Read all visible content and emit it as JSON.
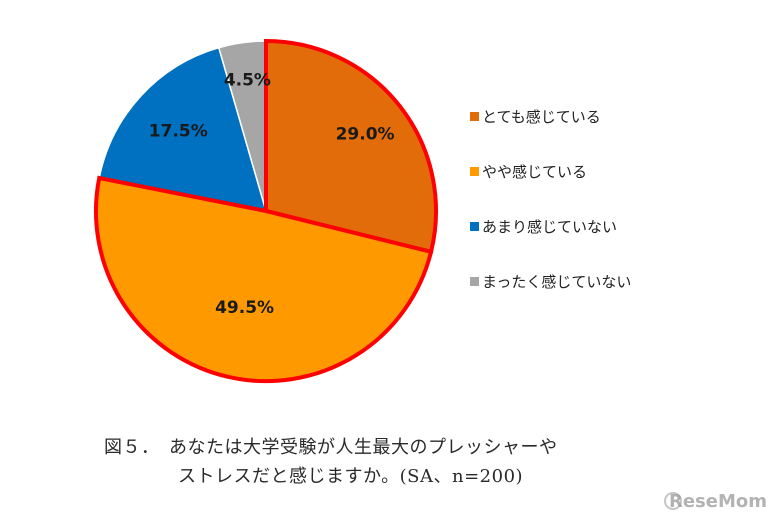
{
  "chart_data": {
    "type": "pie",
    "categories": [
      "とても感じている",
      "やや感じている",
      "あまり感じていない",
      "まったく感じていない"
    ],
    "values": [
      29.0,
      49.5,
      17.5,
      4.5
    ],
    "labels": [
      "29.0%",
      "49.5%",
      "17.5%",
      "4.5%"
    ],
    "colors": [
      "#e36c0a",
      "#ff9900",
      "#0070c0",
      "#a6a6a6"
    ],
    "highlight": {
      "categories": [
        "とても感じている",
        "やや感じている"
      ],
      "outline_color": "#ff0000"
    },
    "start_angle": "12 o'clock",
    "direction": "clockwise",
    "legend_position": "right"
  },
  "caption": {
    "line1": "図５．　あなたは大学受験が人生最大のプレッシャーや",
    "line2": "ストレスだと感じますか。(SA、n=200)"
  },
  "watermark": "ReseMom"
}
